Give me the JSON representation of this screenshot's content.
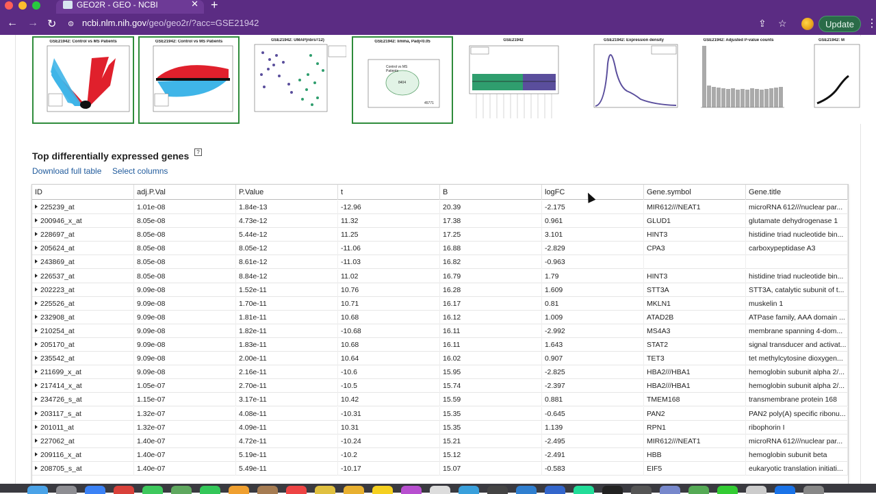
{
  "browser": {
    "tab_title": "GEO2R - GEO - NCBI",
    "url_host": "ncbi.nlm.nih.gov",
    "url_path": "/geo/geo2r/?acc=GSE21942",
    "update_label": "Update"
  },
  "plots": [
    {
      "title": "GSE21942: Control vs MS Patients",
      "selected": true,
      "type": "volcano"
    },
    {
      "title": "GSE21942: Control vs MS Patients",
      "selected": true,
      "type": "ma"
    },
    {
      "title": "GSE21942: UMAP(nbrs=12)",
      "selected": false,
      "type": "umap"
    },
    {
      "title": "GSE21942: limma, Padj<0.05",
      "selected": true,
      "type": "venn",
      "venn_label": "Control vs MS Patients",
      "venn_count": "8404",
      "venn_outside": "45771"
    },
    {
      "title": "GSE21942",
      "selected": false,
      "type": "boxplot"
    },
    {
      "title": "GSE21942: Expression density",
      "selected": false,
      "type": "density"
    },
    {
      "title": "GSE21942: Adjusted P-value counts",
      "selected": false,
      "type": "histogram"
    },
    {
      "title": "GSE21942: M",
      "selected": false,
      "type": "qq"
    }
  ],
  "section": {
    "title": "Top differentially expressed genes",
    "help": "?",
    "download_label": "Download full table",
    "select_columns_label": "Select columns"
  },
  "table": {
    "columns": [
      "ID",
      "adj.P.Val",
      "P.Value",
      "t",
      "B",
      "logFC",
      "Gene.symbol",
      "Gene.title"
    ],
    "rows": [
      [
        "225239_at",
        "1.01e-08",
        "1.84e-13",
        "-12.96",
        "20.39",
        "-2.175",
        "MIR612///NEAT1",
        "microRNA 612///nuclear par..."
      ],
      [
        "200946_x_at",
        "8.05e-08",
        "4.73e-12",
        "11.32",
        "17.38",
        "0.961",
        "GLUD1",
        "glutamate dehydrogenase 1"
      ],
      [
        "228697_at",
        "8.05e-08",
        "5.44e-12",
        "11.25",
        "17.25",
        "3.101",
        "HINT3",
        "histidine triad nucleotide bin..."
      ],
      [
        "205624_at",
        "8.05e-08",
        "8.05e-12",
        "-11.06",
        "16.88",
        "-2.829",
        "CPA3",
        "carboxypeptidase A3"
      ],
      [
        "243869_at",
        "8.05e-08",
        "8.61e-12",
        "-11.03",
        "16.82",
        "-0.963",
        "",
        ""
      ],
      [
        "226537_at",
        "8.05e-08",
        "8.84e-12",
        "11.02",
        "16.79",
        "1.79",
        "HINT3",
        "histidine triad nucleotide bin..."
      ],
      [
        "202223_at",
        "9.09e-08",
        "1.52e-11",
        "10.76",
        "16.28",
        "1.609",
        "STT3A",
        "STT3A, catalytic subunit of t..."
      ],
      [
        "225526_at",
        "9.09e-08",
        "1.70e-11",
        "10.71",
        "16.17",
        "0.81",
        "MKLN1",
        "muskelin 1"
      ],
      [
        "232908_at",
        "9.09e-08",
        "1.81e-11",
        "10.68",
        "16.12",
        "1.009",
        "ATAD2B",
        "ATPase family, AAA domain ..."
      ],
      [
        "210254_at",
        "9.09e-08",
        "1.82e-11",
        "-10.68",
        "16.11",
        "-2.992",
        "MS4A3",
        "membrane spanning 4-dom..."
      ],
      [
        "205170_at",
        "9.09e-08",
        "1.83e-11",
        "10.68",
        "16.11",
        "1.643",
        "STAT2",
        "signal transducer and activat..."
      ],
      [
        "235542_at",
        "9.09e-08",
        "2.00e-11",
        "10.64",
        "16.02",
        "0.907",
        "TET3",
        "tet methylcytosine dioxygen..."
      ],
      [
        "211699_x_at",
        "9.09e-08",
        "2.16e-11",
        "-10.6",
        "15.95",
        "-2.825",
        "HBA2///HBA1",
        "hemoglobin subunit alpha 2/..."
      ],
      [
        "217414_x_at",
        "1.05e-07",
        "2.70e-11",
        "-10.5",
        "15.74",
        "-2.397",
        "HBA2///HBA1",
        "hemoglobin subunit alpha 2/..."
      ],
      [
        "234726_s_at",
        "1.15e-07",
        "3.17e-11",
        "10.42",
        "15.59",
        "0.881",
        "TMEM168",
        "transmembrane protein 168"
      ],
      [
        "203117_s_at",
        "1.32e-07",
        "4.08e-11",
        "-10.31",
        "15.35",
        "-0.645",
        "PAN2",
        "PAN2 poly(A) specific ribonu..."
      ],
      [
        "201011_at",
        "1.32e-07",
        "4.09e-11",
        "10.31",
        "15.35",
        "1.139",
        "RPN1",
        "ribophorin I"
      ],
      [
        "227062_at",
        "1.40e-07",
        "4.72e-11",
        "-10.24",
        "15.21",
        "-2.495",
        "MIR612///NEAT1",
        "microRNA 612///nuclear par..."
      ],
      [
        "209116_x_at",
        "1.40e-07",
        "5.19e-11",
        "-10.2",
        "15.12",
        "-2.491",
        "HBB",
        "hemoglobin subunit beta"
      ],
      [
        "208705_s_at",
        "1.40e-07",
        "5.49e-11",
        "-10.17",
        "15.07",
        "-0.583",
        "EIF5",
        "eukaryotic translation initiati..."
      ]
    ]
  },
  "colors": {
    "browser_chrome": "#5b2c83",
    "selected_border": "#2e8b3a",
    "link": "#1f5a9c",
    "up_red": "#e0202c",
    "down_blue": "#3fb5e8",
    "umap_purple": "#5a4e9c",
    "umap_green": "#2f9e6e"
  }
}
